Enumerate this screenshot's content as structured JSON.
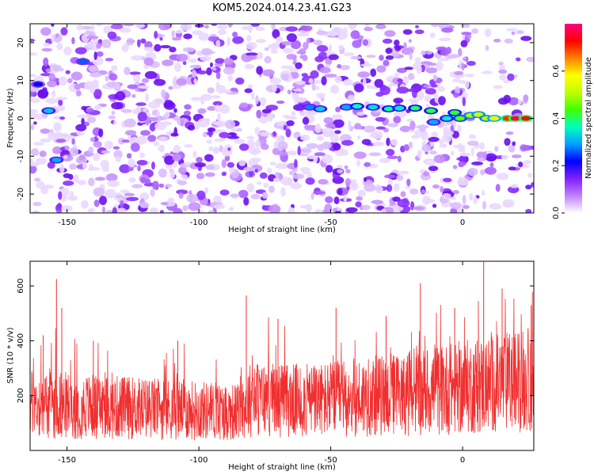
{
  "figure_title": "KOM5.2024.014.23.41.G23",
  "chart_data": [
    {
      "type": "heatmap",
      "xlabel": "Height of straight line (km)",
      "ylabel": "Frequency (Hz)",
      "xlim": [
        -164,
        27
      ],
      "ylim": [
        -25,
        25
      ],
      "x_ticks": [
        -150,
        -100,
        -50,
        0
      ],
      "y_ticks": [
        -20,
        -10,
        0,
        10,
        20
      ],
      "colorbar": {
        "label": "Normalized spectral amplitude",
        "range": [
          0,
          0.8
        ],
        "ticks": [
          0.0,
          0.2,
          0.4,
          0.6
        ],
        "colors": [
          "#ffffff",
          "#c080ff",
          "#8020ff",
          "#0000ff",
          "#00a0ff",
          "#00ffc0",
          "#40ff00",
          "#c0ff00",
          "#ffff00",
          "#ff8000",
          "#ff0000",
          "#ff0080"
        ]
      },
      "features": [
        {
          "x": -157,
          "y": 2,
          "v": 0.32
        },
        {
          "x": -154,
          "y": -11,
          "v": 0.3
        },
        {
          "x": -144,
          "y": 15,
          "v": 0.26
        },
        {
          "x": -161,
          "y": 9,
          "v": 0.22
        },
        {
          "x": -58,
          "y": 3,
          "v": 0.28
        },
        {
          "x": -54,
          "y": 2.5,
          "v": 0.33
        },
        {
          "x": -44,
          "y": 3,
          "v": 0.3
        },
        {
          "x": -40,
          "y": 3.2,
          "v": 0.36
        },
        {
          "x": -34,
          "y": 3,
          "v": 0.34
        },
        {
          "x": -28,
          "y": 2.5,
          "v": 0.38
        },
        {
          "x": -24,
          "y": 2.7,
          "v": 0.35
        },
        {
          "x": -18,
          "y": 2.7,
          "v": 0.4
        },
        {
          "x": -12,
          "y": 2,
          "v": 0.42
        },
        {
          "x": -11,
          "y": -1,
          "v": 0.3
        },
        {
          "x": -6,
          "y": 0,
          "v": 0.35
        },
        {
          "x": -3,
          "y": 1.5,
          "v": 0.42
        },
        {
          "x": -1,
          "y": 0,
          "v": 0.45
        },
        {
          "x": 3,
          "y": 0.8,
          "v": 0.5
        },
        {
          "x": 6,
          "y": 1,
          "v": 0.52
        },
        {
          "x": 9,
          "y": 0,
          "v": 0.5
        },
        {
          "x": 12,
          "y": 0,
          "v": 0.55
        },
        {
          "x": 17,
          "y": 0,
          "v": 0.7
        },
        {
          "x": 20,
          "y": 0,
          "v": 0.78
        },
        {
          "x": 24,
          "y": 0,
          "v": 0.72
        }
      ]
    },
    {
      "type": "line",
      "xlabel": "Height of straight line (km)",
      "ylabel": "SNR (10 * v/v)",
      "xlim": [
        -164,
        27
      ],
      "ylim": [
        0,
        690
      ],
      "x_ticks": [
        -150,
        -100,
        -50,
        0
      ],
      "y_ticks": [
        200,
        400,
        600
      ],
      "color": "#f03030",
      "peaks": [
        {
          "x": -164,
          "y": 470
        },
        {
          "x": -159,
          "y": 420
        },
        {
          "x": -154,
          "y": 625
        },
        {
          "x": -152,
          "y": 520
        },
        {
          "x": -140,
          "y": 400
        },
        {
          "x": -108,
          "y": 400
        },
        {
          "x": -82,
          "y": 565
        },
        {
          "x": -70,
          "y": 480
        },
        {
          "x": -48,
          "y": 520
        },
        {
          "x": -29,
          "y": 490
        },
        {
          "x": -16,
          "y": 610
        },
        {
          "x": -3,
          "y": 520
        },
        {
          "x": 8,
          "y": 690
        },
        {
          "x": 15,
          "y": 590
        },
        {
          "x": 26,
          "y": 530
        }
      ],
      "baseline": [
        {
          "x": -164,
          "y": 170
        },
        {
          "x": -140,
          "y": 160
        },
        {
          "x": -110,
          "y": 150
        },
        {
          "x": -85,
          "y": 140
        },
        {
          "x": -80,
          "y": 190
        },
        {
          "x": -60,
          "y": 180
        },
        {
          "x": -30,
          "y": 200
        },
        {
          "x": 0,
          "y": 230
        },
        {
          "x": 27,
          "y": 260
        }
      ]
    }
  ]
}
